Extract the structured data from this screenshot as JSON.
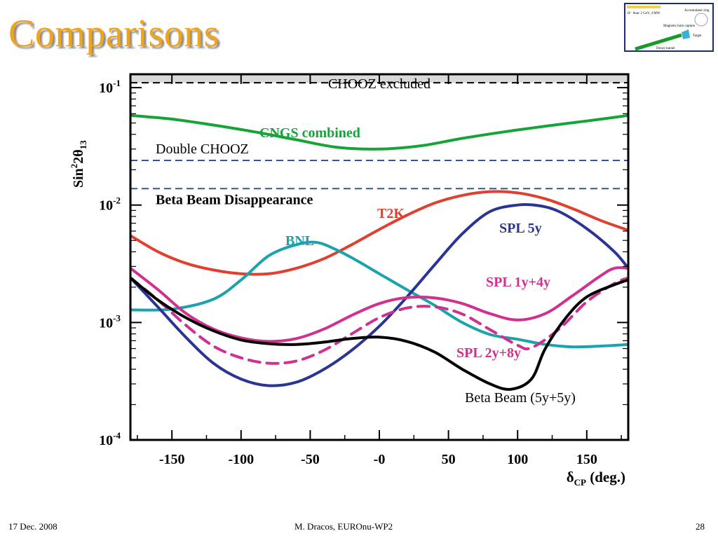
{
  "slide": {
    "title": "Comparisons",
    "footer": {
      "date": "17 Dec. 2008",
      "author": "M. Dracos, EUROnu-WP2",
      "page": "28"
    }
  },
  "thumbnail": {
    "labels": [
      "H⁻ linac 2 GeV, 4 MW",
      "Accumulator ring",
      "Magnetic horn capture",
      "Target",
      "Decay tunnel"
    ]
  },
  "colors": {
    "background_band": "#d9d9d9",
    "cngs": "#16a338",
    "t2k": "#e04030",
    "bnl": "#1aa3ad",
    "spl5y": "#2a3593",
    "spl1y4y": "#d0308f",
    "spl2y8y": "#d0308f",
    "betabeam": "#000000",
    "dashed_lines": "#2a5a9a",
    "title": "#f0a41c"
  },
  "chart_data": {
    "type": "line",
    "xlabel_symbol": "δ",
    "xlabel_sub": "CP",
    "xlabel_suffix": " (deg.)",
    "ylabel_base": "Sin",
    "ylabel_sup": "2",
    "ylabel_mid": "2θ",
    "ylabel_sub": "13",
    "xlim": [
      -180,
      180
    ],
    "ylim": [
      0.0001,
      0.13
    ],
    "yscale": "log",
    "grid": false,
    "x_ticks": [
      {
        "value": -150,
        "label": "-150"
      },
      {
        "value": -100,
        "label": "-100"
      },
      {
        "value": -50,
        "label": "-50"
      },
      {
        "value": 0,
        "label": "-0"
      },
      {
        "value": 50,
        "label": "50"
      },
      {
        "value": 100,
        "label": "100"
      },
      {
        "value": 150,
        "label": "150"
      }
    ],
    "y_ticks": [
      {
        "value": 0.1,
        "base": "10",
        "exp": "-1"
      },
      {
        "value": 0.01,
        "base": "10",
        "exp": "-2"
      },
      {
        "value": 0.001,
        "base": "10",
        "exp": "-3"
      },
      {
        "value": 0.0001,
        "base": "10",
        "exp": "-4"
      }
    ],
    "excluded_region": {
      "label": "CHOOZ excluded",
      "from": 0.11,
      "to": 0.13
    },
    "reference_lines": [
      {
        "key": "chooz_limit",
        "value": 0.11
      },
      {
        "key": "double_chooz",
        "label": "Double CHOOZ",
        "value": 0.024
      },
      {
        "key": "beta_beam_disappearance",
        "label": "Beta Beam Disappearance",
        "value": 0.0138
      }
    ],
    "series": [
      {
        "key": "cngs",
        "name": "CNGS combined",
        "color_key": "cngs",
        "dashed": false,
        "points": [
          [
            -180,
            0.058
          ],
          [
            -150,
            0.054
          ],
          [
            -120,
            0.048
          ],
          [
            -90,
            0.042
          ],
          [
            -60,
            0.036
          ],
          [
            -30,
            0.031
          ],
          [
            0,
            0.03
          ],
          [
            30,
            0.032
          ],
          [
            60,
            0.037
          ],
          [
            90,
            0.042
          ],
          [
            120,
            0.047
          ],
          [
            150,
            0.052
          ],
          [
            180,
            0.058
          ]
        ]
      },
      {
        "key": "t2k",
        "name": "T2K",
        "color_key": "t2k",
        "dashed": false,
        "points": [
          [
            -180,
            0.0055
          ],
          [
            -160,
            0.004
          ],
          [
            -140,
            0.0032
          ],
          [
            -120,
            0.0028
          ],
          [
            -100,
            0.0026
          ],
          [
            -80,
            0.0026
          ],
          [
            -60,
            0.0029
          ],
          [
            -40,
            0.0035
          ],
          [
            -20,
            0.0046
          ],
          [
            0,
            0.0062
          ],
          [
            20,
            0.0082
          ],
          [
            40,
            0.0104
          ],
          [
            60,
            0.0121
          ],
          [
            80,
            0.013
          ],
          [
            100,
            0.0127
          ],
          [
            120,
            0.0113
          ],
          [
            140,
            0.0093
          ],
          [
            160,
            0.0074
          ],
          [
            180,
            0.0061
          ]
        ]
      },
      {
        "key": "bnl",
        "name": "BNL",
        "color_key": "bnl",
        "dashed": false,
        "points": [
          [
            -180,
            0.00128
          ],
          [
            -150,
            0.0013
          ],
          [
            -120,
            0.00158
          ],
          [
            -100,
            0.0023
          ],
          [
            -80,
            0.0037
          ],
          [
            -60,
            0.0046
          ],
          [
            -45,
            0.0048
          ],
          [
            -30,
            0.0041
          ],
          [
            -15,
            0.0033
          ],
          [
            0,
            0.0026
          ],
          [
            20,
            0.0019
          ],
          [
            40,
            0.0014
          ],
          [
            60,
            0.001
          ],
          [
            80,
            0.00079
          ],
          [
            100,
            0.00072
          ],
          [
            120,
            0.00065
          ],
          [
            140,
            0.00062
          ],
          [
            160,
            0.00063
          ],
          [
            180,
            0.00065
          ]
        ]
      },
      {
        "key": "spl5y",
        "name": "SPL 5y",
        "color_key": "spl5y",
        "dashed": false,
        "points": [
          [
            -180,
            0.0024
          ],
          [
            -160,
            0.00135
          ],
          [
            -140,
            0.00075
          ],
          [
            -120,
            0.00045
          ],
          [
            -100,
            0.00033
          ],
          [
            -80,
            0.00029
          ],
          [
            -60,
            0.00031
          ],
          [
            -40,
            0.0004
          ],
          [
            -20,
            0.00058
          ],
          [
            0,
            0.00093
          ],
          [
            20,
            0.00165
          ],
          [
            40,
            0.0031
          ],
          [
            60,
            0.0057
          ],
          [
            80,
            0.0088
          ],
          [
            100,
            0.01
          ],
          [
            115,
            0.0099
          ],
          [
            130,
            0.0088
          ],
          [
            150,
            0.0063
          ],
          [
            170,
            0.004
          ],
          [
            180,
            0.0029
          ]
        ]
      },
      {
        "key": "spl1y4y",
        "name": "SPL 1y+4y",
        "color_key": "spl1y4y",
        "dashed": false,
        "points": [
          [
            -180,
            0.0029
          ],
          [
            -160,
            0.0019
          ],
          [
            -140,
            0.0012
          ],
          [
            -120,
            0.00088
          ],
          [
            -100,
            0.00074
          ],
          [
            -80,
            0.00069
          ],
          [
            -60,
            0.00073
          ],
          [
            -40,
            0.00088
          ],
          [
            -20,
            0.00115
          ],
          [
            0,
            0.00145
          ],
          [
            20,
            0.00163
          ],
          [
            40,
            0.00162
          ],
          [
            60,
            0.00145
          ],
          [
            80,
            0.00119
          ],
          [
            100,
            0.00105
          ],
          [
            120,
            0.00119
          ],
          [
            140,
            0.0017
          ],
          [
            160,
            0.0025
          ],
          [
            170,
            0.0029
          ],
          [
            180,
            0.0029
          ]
        ]
      },
      {
        "key": "spl2y8y",
        "name": "SPL 2y+8y",
        "color_key": "spl2y8y",
        "dashed": true,
        "points": [
          [
            -180,
            0.0024
          ],
          [
            -160,
            0.00155
          ],
          [
            -140,
            0.00095
          ],
          [
            -120,
            0.00063
          ],
          [
            -100,
            0.0005
          ],
          [
            -80,
            0.00045
          ],
          [
            -60,
            0.00047
          ],
          [
            -40,
            0.00058
          ],
          [
            -20,
            0.0008
          ],
          [
            0,
            0.0011
          ],
          [
            20,
            0.00133
          ],
          [
            40,
            0.00136
          ],
          [
            60,
            0.00118
          ],
          [
            80,
            0.00087
          ],
          [
            100,
            0.00064
          ],
          [
            110,
            0.00061
          ],
          [
            130,
            0.00088
          ],
          [
            150,
            0.0015
          ],
          [
            170,
            0.00215
          ],
          [
            180,
            0.0024
          ]
        ]
      },
      {
        "key": "betabeam",
        "name": "Beta Beam (5y+5y)",
        "color_key": "betabeam",
        "dashed": false,
        "points": [
          [
            -180,
            0.0024
          ],
          [
            -160,
            0.00155
          ],
          [
            -140,
            0.0011
          ],
          [
            -120,
            0.00085
          ],
          [
            -100,
            0.00071
          ],
          [
            -80,
            0.00066
          ],
          [
            -60,
            0.00065
          ],
          [
            -40,
            0.00068
          ],
          [
            -20,
            0.00073
          ],
          [
            0,
            0.00075
          ],
          [
            20,
            0.00069
          ],
          [
            40,
            0.00056
          ],
          [
            60,
            0.0004
          ],
          [
            80,
            0.0003
          ],
          [
            95,
            0.00027
          ],
          [
            110,
            0.00033
          ],
          [
            120,
            0.0006
          ],
          [
            135,
            0.0011
          ],
          [
            150,
            0.00165
          ],
          [
            170,
            0.0021
          ],
          [
            180,
            0.0023
          ]
        ]
      }
    ]
  }
}
